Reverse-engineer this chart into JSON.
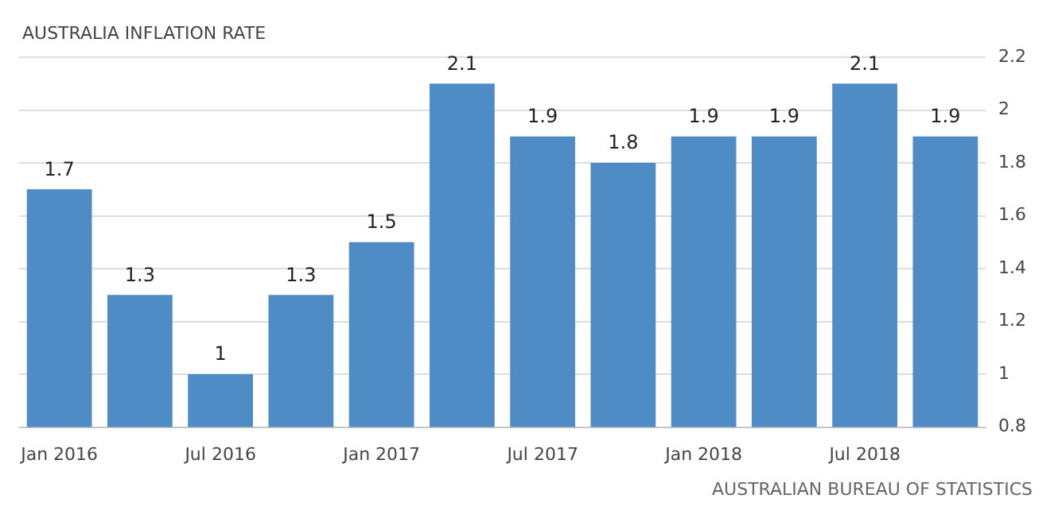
{
  "chart_data": {
    "type": "bar",
    "title": "AUSTRALIA INFLATION RATE",
    "categories": [
      "Jan 2016",
      null,
      "Jul 2016",
      null,
      "Jan 2017",
      null,
      "Jul 2017",
      null,
      "Jan 2018",
      null,
      "Jul 2018",
      null
    ],
    "values": [
      1.7,
      1.3,
      1,
      1.3,
      1.5,
      2.1,
      1.9,
      1.8,
      1.9,
      1.9,
      2.1,
      1.9
    ],
    "color": "#4f8bc4",
    "ylim": [
      0.8,
      2.2
    ],
    "yticks": [
      0.8,
      1,
      1.2,
      1.4,
      1.6,
      1.8,
      2,
      2.2
    ],
    "grid": "y",
    "data_labels": true,
    "annotations": [
      "AUSTRALIAN BUREAU OF STATISTICS"
    ]
  }
}
